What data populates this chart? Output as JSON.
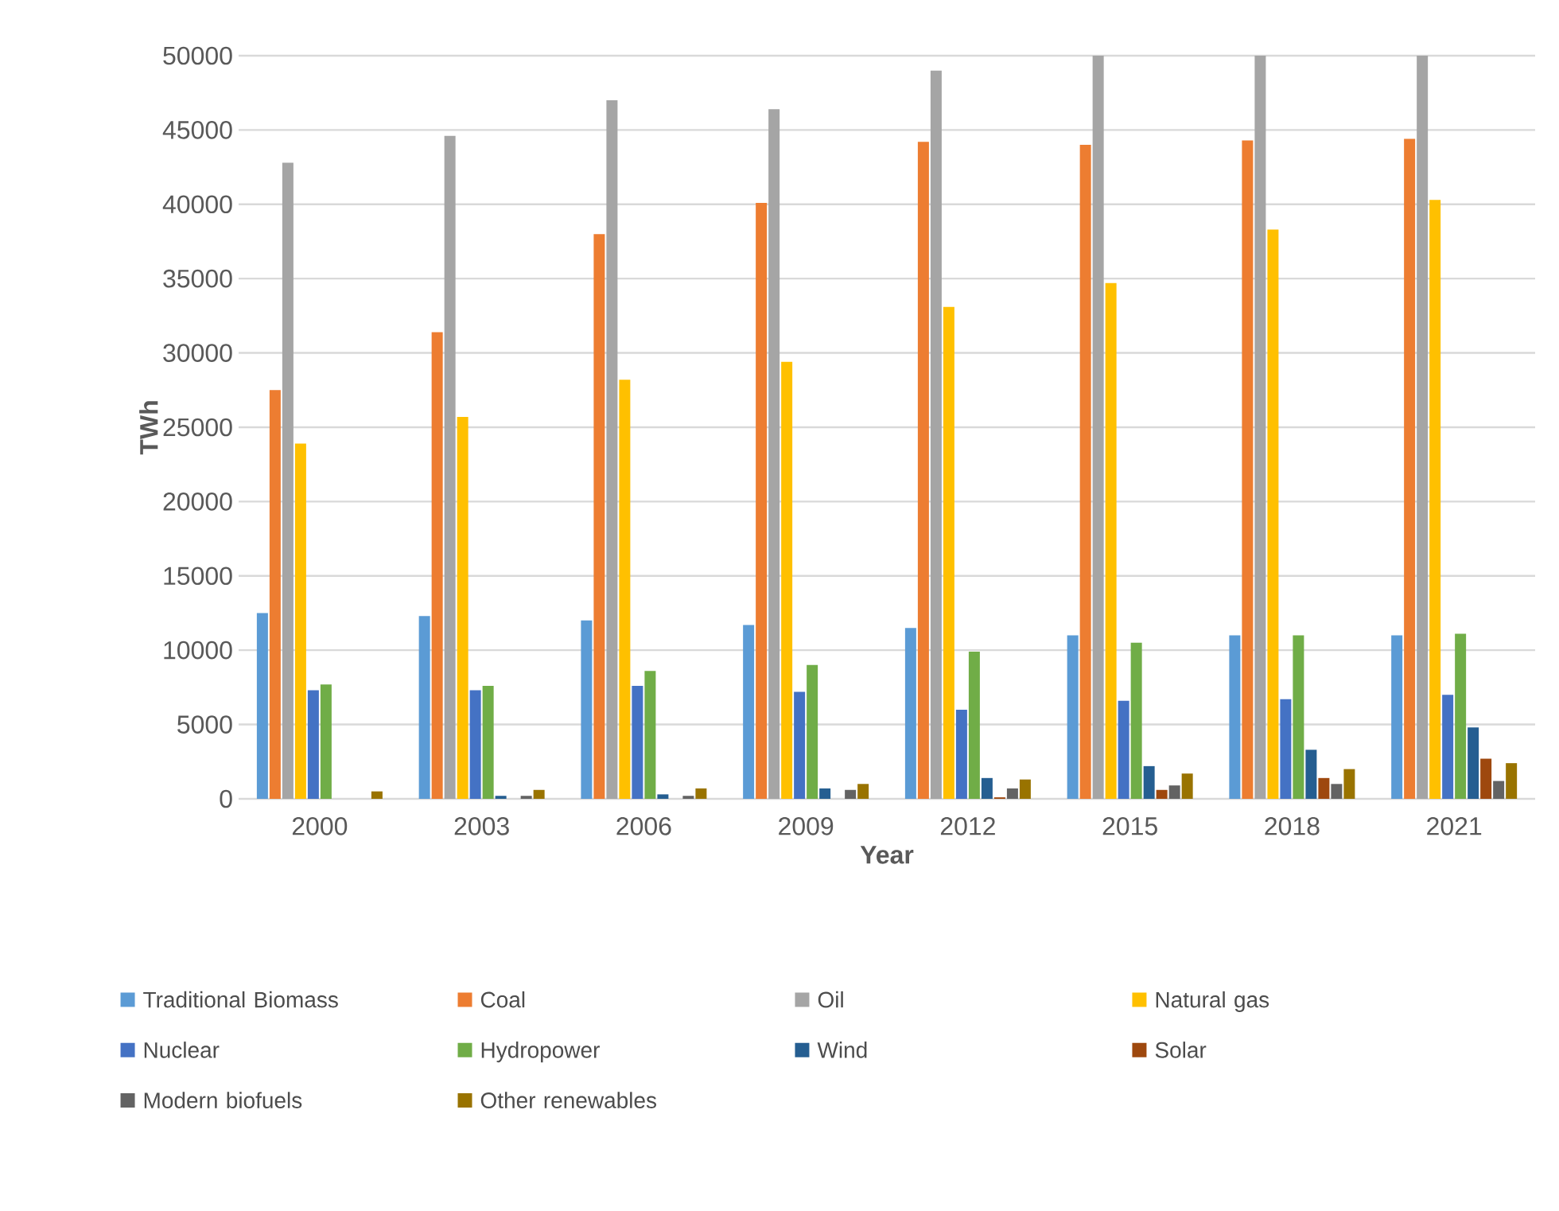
{
  "chart_data": {
    "type": "bar",
    "xlabel": "Year",
    "ylabel": "TWh",
    "categories": [
      "2000",
      "2003",
      "2006",
      "2009",
      "2012",
      "2015",
      "2018",
      "2021"
    ],
    "series": [
      {
        "name": "Traditional Biomass",
        "color": "#5b9bd5",
        "values": [
          12500,
          12300,
          12000,
          11700,
          11500,
          11000,
          11000,
          11000
        ]
      },
      {
        "name": "Coal",
        "color": "#ed7d31",
        "values": [
          27500,
          31400,
          38000,
          40100,
          44200,
          44000,
          44300,
          44400
        ]
      },
      {
        "name": "Oil",
        "color": "#a5a5a5",
        "values": [
          42800,
          44600,
          47000,
          46400,
          49000,
          50000,
          50000,
          50000
        ]
      },
      {
        "name": "Natural gas",
        "color": "#ffc000",
        "values": [
          23900,
          25700,
          28200,
          29400,
          33100,
          34700,
          38300,
          40300
        ]
      },
      {
        "name": "Nuclear",
        "color": "#4472c4",
        "values": [
          7300,
          7300,
          7600,
          7200,
          6000,
          6600,
          6700,
          7000
        ]
      },
      {
        "name": "Hydropower",
        "color": "#70ad47",
        "values": [
          7700,
          7600,
          8600,
          9000,
          9900,
          10500,
          11000,
          11100
        ]
      },
      {
        "name": "Wind",
        "color": "#255e91",
        "values": [
          0,
          200,
          300,
          700,
          1400,
          2200,
          3300,
          4800
        ]
      },
      {
        "name": "Solar",
        "color": "#9e480e",
        "values": [
          0,
          0,
          0,
          0,
          100,
          600,
          1400,
          2700
        ]
      },
      {
        "name": "Modern biofuels",
        "color": "#636363",
        "values": [
          0,
          200,
          200,
          600,
          700,
          900,
          1000,
          1200
        ]
      },
      {
        "name": "Other renewables",
        "color": "#997300",
        "values": [
          500,
          600,
          700,
          1000,
          1300,
          1700,
          2000,
          2400
        ]
      }
    ],
    "ylim": [
      0,
      50000
    ],
    "yticks": [
      0,
      5000,
      10000,
      15000,
      20000,
      25000,
      30000,
      35000,
      40000,
      45000,
      50000
    ],
    "grid": "y",
    "legend": "bottom"
  }
}
